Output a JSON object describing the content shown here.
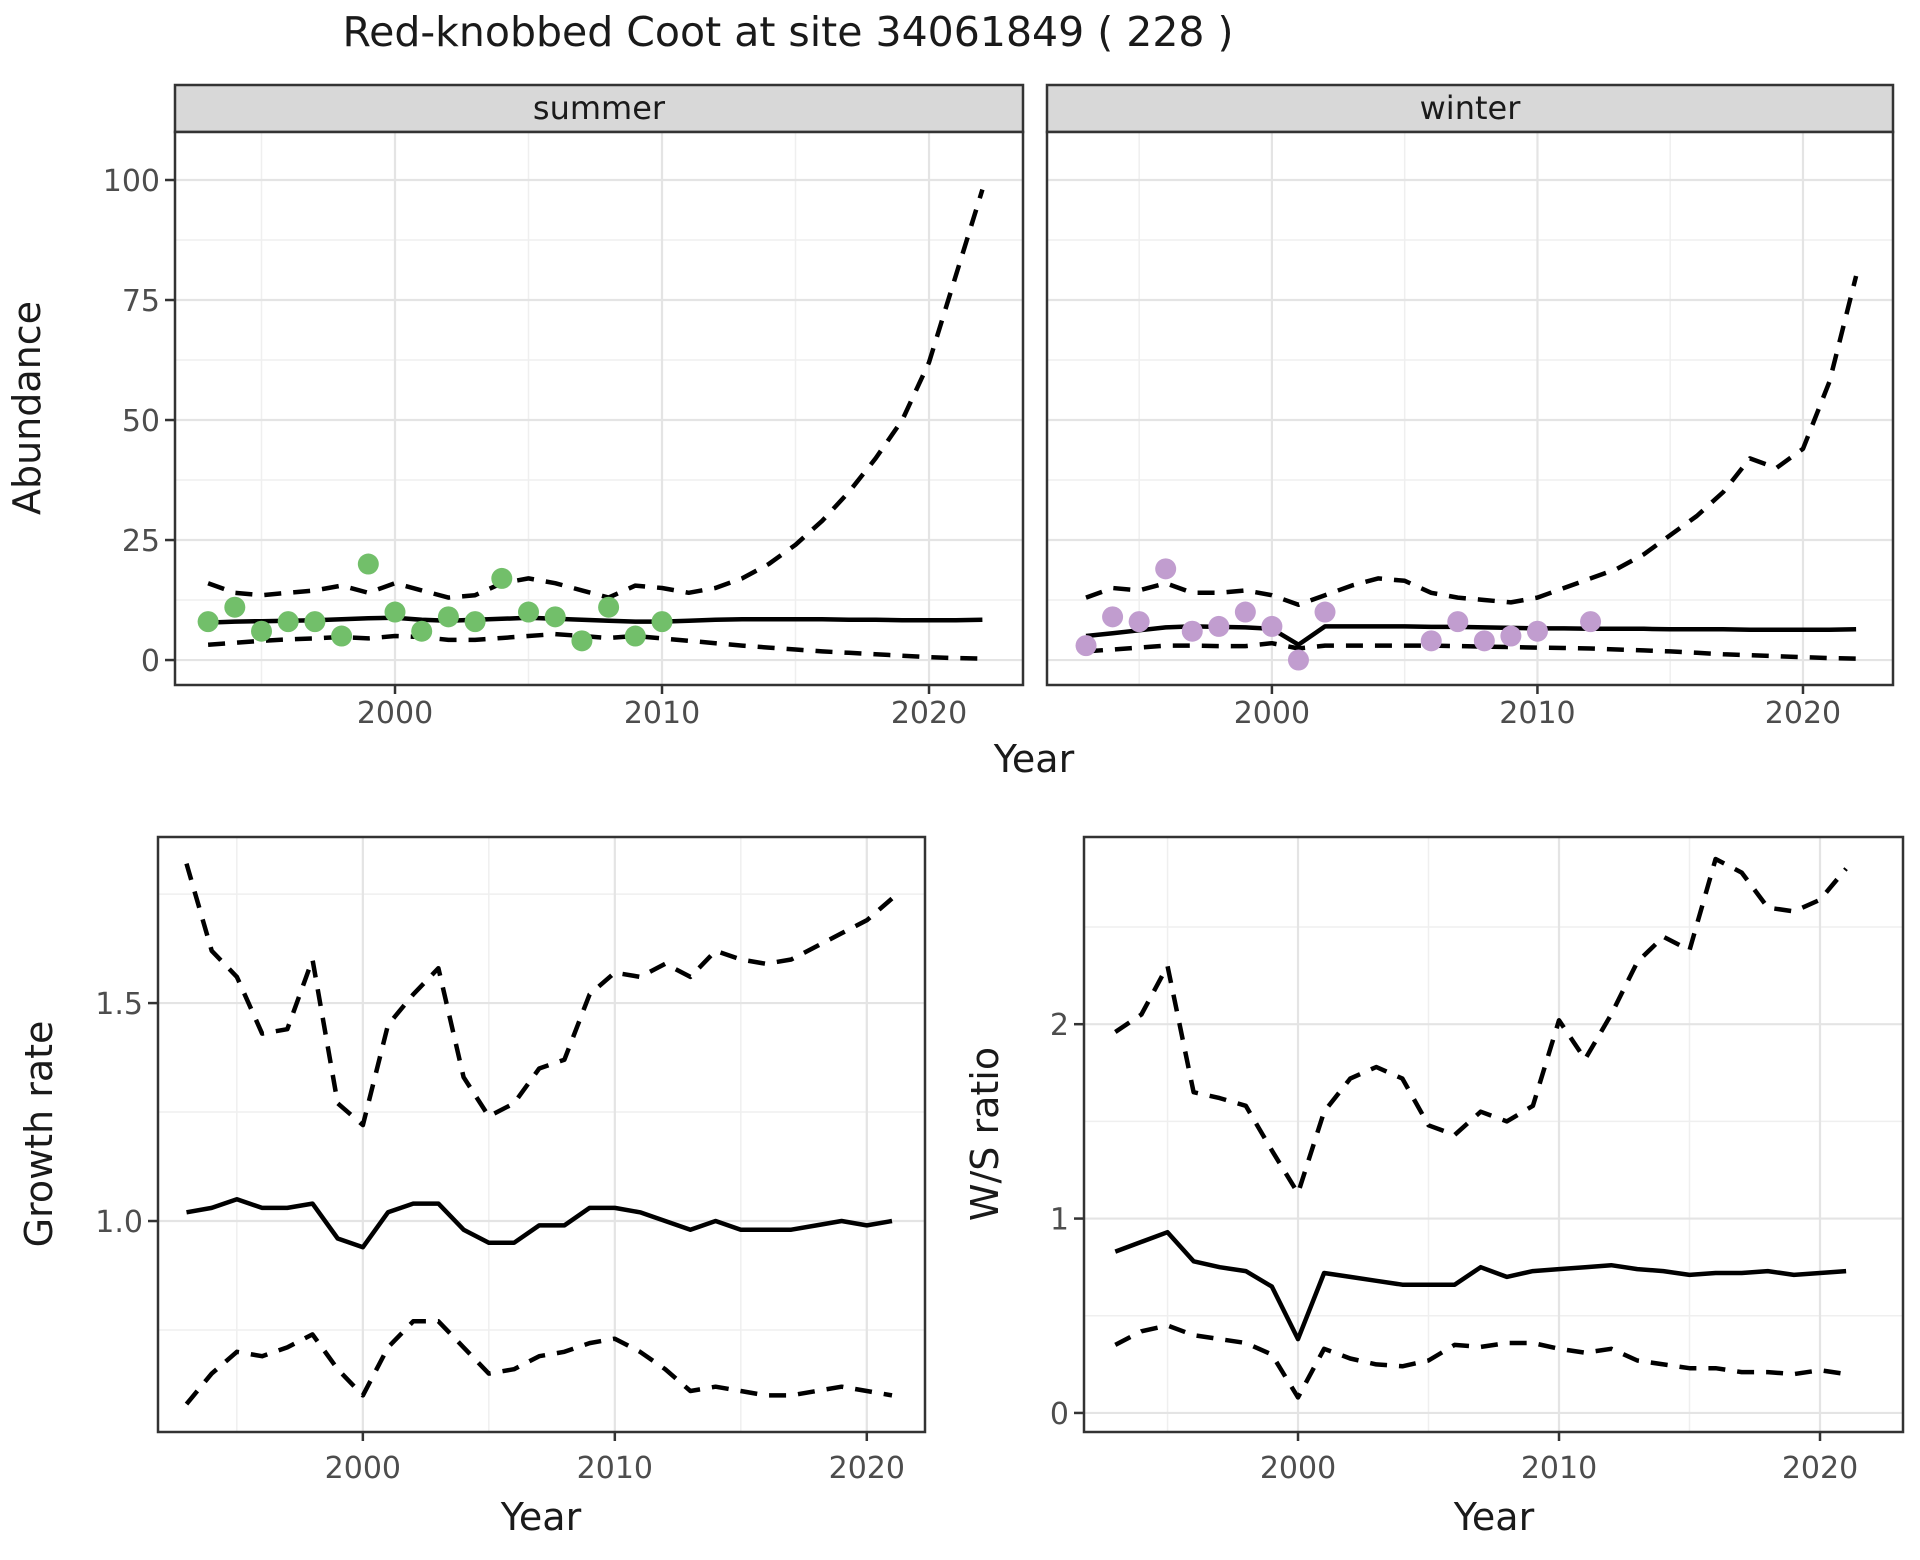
{
  "title": "Red-knobbed Coot at site 34061849 ( 228 )",
  "facets": {
    "summer": "summer",
    "winter": "winter"
  },
  "axis_titles": {
    "abundance": "Abundance",
    "year_top": "Year",
    "growth": "Growth rate",
    "year_growth": "Year",
    "ratio": "W/S ratio",
    "year_ratio": "Year"
  },
  "colors": {
    "summer_points": "#72bf6a",
    "winter_points": "#c19dcf",
    "line": "#000000",
    "grid_major": "#e4e4e4",
    "grid_minor": "#efefef",
    "panel_border": "#333333",
    "strip_bg": "#d8d8d8",
    "axis_text": "#4d4d4d",
    "title_text": "#1a1a1a"
  },
  "chart_data": [
    {
      "id": "summer",
      "type": "line",
      "facet_label": "summer",
      "xlabel": "Year",
      "ylabel": "Abundance",
      "xlim": [
        1991.76,
        2023.52
      ],
      "ylim": [
        -5.2,
        110
      ],
      "x_major": [
        2000,
        2010,
        2020
      ],
      "x_major_labels": [
        "2000",
        "2010",
        "2020"
      ],
      "x_minor": [
        1995,
        2005,
        2015
      ],
      "y_major": [
        0,
        25,
        50,
        75,
        100
      ],
      "y_major_labels": [
        "0",
        "25",
        "50",
        "75",
        "100"
      ],
      "y_minor": [
        12.5,
        37.5,
        62.5,
        87.5
      ],
      "show_y_labels": true,
      "points": {
        "years": [
          1993,
          1994,
          1995,
          1996,
          1997,
          1998,
          1999,
          2000,
          2001,
          2002,
          2003,
          2004,
          2005,
          2006,
          2007,
          2008,
          2009,
          2010
        ],
        "values": [
          8,
          11,
          6,
          8,
          8,
          5,
          20,
          10,
          6,
          9,
          8,
          17,
          10,
          9,
          4,
          11,
          5,
          8
        ],
        "color": "#72bf6a"
      },
      "series": [
        {
          "name": "upper_ci",
          "style": "dashed",
          "x_start": 1993,
          "x_step": 1,
          "values": [
            16,
            14,
            13.5,
            14,
            14.5,
            15.5,
            14,
            16,
            14.5,
            13,
            13.5,
            16,
            17,
            16,
            14.5,
            13,
            15.5,
            15,
            14,
            15,
            17,
            20,
            24,
            29,
            35,
            42,
            50,
            62,
            80,
            98
          ]
        },
        {
          "name": "fit",
          "style": "solid",
          "x_start": 1993,
          "x_step": 1,
          "values": [
            7.8,
            8.0,
            8.1,
            8.2,
            8.3,
            8.5,
            8.7,
            8.8,
            8.4,
            8.2,
            8.4,
            8.6,
            8.8,
            8.6,
            8.4,
            8.2,
            8.0,
            8.0,
            8.2,
            8.4,
            8.5,
            8.5,
            8.5,
            8.5,
            8.4,
            8.4,
            8.3,
            8.3,
            8.3,
            8.4
          ]
        },
        {
          "name": "lower_ci",
          "style": "dashed",
          "x_start": 1993,
          "x_step": 1,
          "values": [
            3.2,
            3.6,
            4.0,
            4.3,
            4.5,
            4.8,
            4.5,
            5.0,
            4.8,
            4.2,
            4.2,
            4.6,
            5.0,
            5.4,
            5.0,
            4.6,
            5.0,
            4.5,
            4.0,
            3.5,
            3.0,
            2.6,
            2.2,
            1.8,
            1.5,
            1.2,
            0.9,
            0.6,
            0.4,
            0.3
          ]
        }
      ]
    },
    {
      "id": "winter",
      "type": "line",
      "facet_label": "winter",
      "xlabel": "Year",
      "ylabel": "Abundance",
      "xlim": [
        1991.53,
        2023.39
      ],
      "ylim": [
        -5.2,
        110
      ],
      "x_major": [
        2000,
        2010,
        2020
      ],
      "x_major_labels": [
        "2000",
        "2010",
        "2020"
      ],
      "x_minor": [
        1995,
        2005,
        2015
      ],
      "y_major": [
        0,
        25,
        50,
        75,
        100
      ],
      "y_major_labels": [
        "0",
        "25",
        "50",
        "75",
        "100"
      ],
      "y_minor": [
        12.5,
        37.5,
        62.5,
        87.5
      ],
      "show_y_labels": false,
      "points": {
        "years": [
          1993,
          1994,
          1995,
          1996,
          1997,
          1998,
          1999,
          2000,
          2001,
          2002,
          2006,
          2007,
          2008,
          2009,
          2010,
          2012
        ],
        "values": [
          3,
          9,
          8,
          19,
          6,
          7,
          10,
          7,
          0,
          10,
          4,
          8,
          4,
          5,
          6,
          8
        ],
        "color": "#c19dcf"
      },
      "series": [
        {
          "name": "upper_ci",
          "style": "dashed",
          "x_start": 1993,
          "x_step": 1,
          "values": [
            13,
            15,
            14.5,
            16,
            14,
            14,
            14.5,
            13.5,
            11.5,
            13.5,
            15.5,
            17,
            16.5,
            14,
            13,
            12.5,
            12,
            13,
            15,
            17,
            19,
            22,
            26,
            30,
            35,
            42,
            40,
            44,
            58,
            80
          ]
        },
        {
          "name": "fit",
          "style": "solid",
          "x_start": 1993,
          "x_step": 1,
          "values": [
            5.0,
            5.6,
            6.2,
            6.8,
            7.0,
            6.9,
            6.8,
            6.5,
            3.2,
            7.0,
            7.0,
            7.0,
            7.0,
            6.9,
            6.9,
            6.8,
            6.7,
            6.6,
            6.6,
            6.5,
            6.5,
            6.5,
            6.4,
            6.4,
            6.4,
            6.3,
            6.3,
            6.3,
            6.3,
            6.4
          ]
        },
        {
          "name": "lower_ci",
          "style": "dashed",
          "x_start": 1993,
          "x_step": 1,
          "values": [
            1.8,
            2.2,
            2.6,
            3.0,
            3.0,
            2.9,
            2.9,
            3.5,
            2.4,
            3.0,
            3.0,
            3.0,
            3.0,
            3.0,
            2.9,
            2.8,
            2.7,
            2.6,
            2.5,
            2.4,
            2.2,
            2.0,
            1.8,
            1.5,
            1.2,
            1.0,
            0.8,
            0.6,
            0.4,
            0.3
          ]
        }
      ]
    },
    {
      "id": "growth",
      "type": "line",
      "facet_label": "",
      "xlabel": "Year",
      "ylabel": "Growth rate",
      "xlim": [
        1991.87,
        2022.31
      ],
      "ylim": [
        0.516,
        1.881
      ],
      "x_major": [
        2000,
        2010,
        2020
      ],
      "x_major_labels": [
        "2000",
        "2010",
        "2020"
      ],
      "x_minor": [
        1995,
        2005,
        2015
      ],
      "y_major": [
        1.0,
        1.5
      ],
      "y_major_labels": [
        "1.0",
        "1.5"
      ],
      "y_minor": [
        0.75,
        1.25,
        1.75
      ],
      "show_y_labels": true,
      "points": null,
      "series": [
        {
          "name": "upper_ci",
          "style": "dashed",
          "x_start": 1993,
          "x_step": 1,
          "values": [
            1.82,
            1.62,
            1.56,
            1.43,
            1.44,
            1.6,
            1.27,
            1.22,
            1.45,
            1.52,
            1.58,
            1.33,
            1.24,
            1.27,
            1.35,
            1.37,
            1.52,
            1.57,
            1.56,
            1.59,
            1.56,
            1.62,
            1.6,
            1.59,
            1.6,
            1.63,
            1.66,
            1.69,
            1.74
          ]
        },
        {
          "name": "fit",
          "style": "solid",
          "x_start": 1993,
          "x_step": 1,
          "values": [
            1.02,
            1.03,
            1.05,
            1.03,
            1.03,
            1.04,
            0.96,
            0.94,
            1.02,
            1.04,
            1.04,
            0.98,
            0.95,
            0.95,
            0.99,
            0.99,
            1.03,
            1.03,
            1.02,
            1.0,
            0.98,
            1.0,
            0.98,
            0.98,
            0.98,
            0.99,
            1.0,
            0.99,
            1.0
          ]
        },
        {
          "name": "lower_ci",
          "style": "dashed",
          "x_start": 1993,
          "x_step": 1,
          "values": [
            0.58,
            0.65,
            0.7,
            0.69,
            0.71,
            0.74,
            0.66,
            0.6,
            0.71,
            0.77,
            0.77,
            0.71,
            0.65,
            0.66,
            0.69,
            0.7,
            0.72,
            0.73,
            0.7,
            0.66,
            0.61,
            0.62,
            0.61,
            0.6,
            0.6,
            0.61,
            0.62,
            0.61,
            0.6
          ]
        }
      ]
    },
    {
      "id": "ratio",
      "type": "line",
      "facet_label": "",
      "xlabel": "Year",
      "ylabel": "W/S ratio",
      "xlim": [
        1991.8,
        2023.18
      ],
      "ylim": [
        -0.098,
        2.963
      ],
      "x_major": [
        2000,
        2010,
        2020
      ],
      "x_major_labels": [
        "2000",
        "2010",
        "2020"
      ],
      "x_minor": [
        1995,
        2005,
        2015
      ],
      "y_major": [
        0,
        1,
        2
      ],
      "y_major_labels": [
        "0",
        "1",
        "2"
      ],
      "y_minor": [
        0.5,
        1.5,
        2.5
      ],
      "show_y_labels": true,
      "points": null,
      "series": [
        {
          "name": "upper_ci",
          "style": "dashed",
          "x_start": 1993,
          "x_step": 1,
          "values": [
            1.96,
            2.05,
            2.3,
            1.65,
            1.62,
            1.58,
            1.35,
            1.13,
            1.55,
            1.72,
            1.78,
            1.72,
            1.48,
            1.43,
            1.55,
            1.5,
            1.58,
            2.02,
            1.82,
            2.05,
            2.32,
            2.45,
            2.38,
            2.85,
            2.78,
            2.6,
            2.58,
            2.64,
            2.8
          ]
        },
        {
          "name": "fit",
          "style": "solid",
          "x_start": 1993,
          "x_step": 1,
          "values": [
            0.83,
            0.88,
            0.93,
            0.78,
            0.75,
            0.73,
            0.65,
            0.38,
            0.72,
            0.7,
            0.68,
            0.66,
            0.66,
            0.66,
            0.75,
            0.7,
            0.73,
            0.74,
            0.75,
            0.76,
            0.74,
            0.73,
            0.71,
            0.72,
            0.72,
            0.73,
            0.71,
            0.72,
            0.73
          ]
        },
        {
          "name": "lower_ci",
          "style": "dashed",
          "x_start": 1993,
          "x_step": 1,
          "values": [
            0.35,
            0.42,
            0.45,
            0.4,
            0.38,
            0.36,
            0.3,
            0.08,
            0.33,
            0.28,
            0.25,
            0.24,
            0.27,
            0.35,
            0.34,
            0.36,
            0.36,
            0.33,
            0.31,
            0.33,
            0.27,
            0.25,
            0.23,
            0.23,
            0.21,
            0.21,
            0.2,
            0.22,
            0.2
          ]
        }
      ]
    }
  ]
}
